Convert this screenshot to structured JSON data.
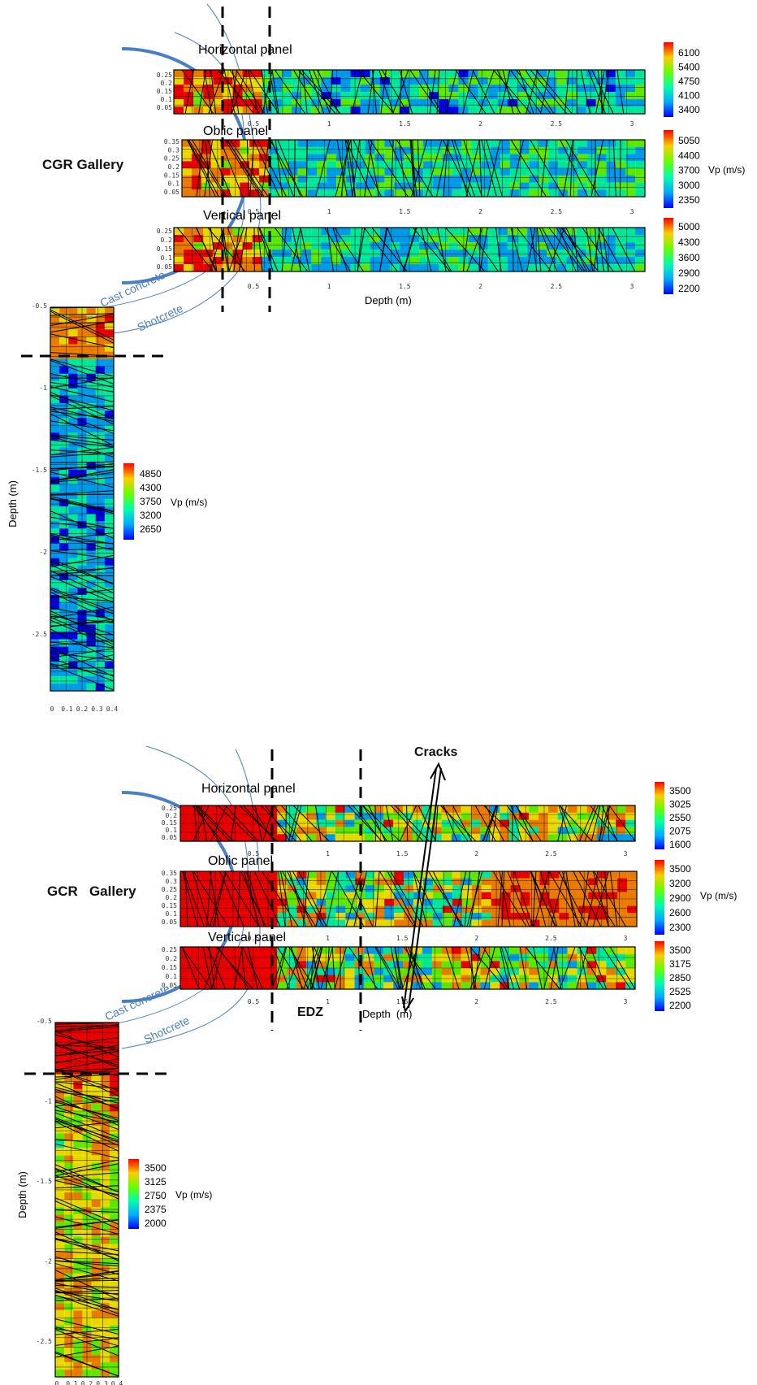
{
  "figure_top": {
    "gallery_label": "CGR Gallery",
    "layer_labels": [
      "Cast concrete",
      "Shotcrete"
    ],
    "depth_label_horizontal": "Depth (m)",
    "depth_label_vertical": "Depth (m)",
    "unit_label": "Vp (m/s)",
    "panels": [
      {
        "title": "Horizontal panel",
        "y_ticks": [
          "0.25",
          "0.2",
          "0.15",
          "0.1",
          "0.05"
        ],
        "x_ticks": [
          "0.5",
          "1",
          "1.5",
          "2",
          "2.5",
          "3"
        ],
        "colorbar": [
          "6100",
          "5400",
          "4750",
          "4100",
          "3400"
        ]
      },
      {
        "title": "Oblic panel",
        "y_ticks": [
          "0.35",
          "0.3",
          "0.25",
          "0.2",
          "0.15",
          "0.1",
          "0.05"
        ],
        "x_ticks": [
          "0.5",
          "1",
          "1.5",
          "2",
          "2.5",
          "3"
        ],
        "colorbar": [
          "5050",
          "4400",
          "3700",
          "3000",
          "2350"
        ]
      },
      {
        "title": "Vertical panel",
        "y_ticks": [
          "0.25",
          "0.2",
          "0.15",
          "0.1",
          "0.05"
        ],
        "x_ticks": [
          "0.5",
          "1",
          "1.5",
          "2",
          "2.5",
          "3"
        ],
        "colorbar": [
          "5000",
          "4300",
          "3600",
          "2900",
          "2200"
        ]
      }
    ],
    "vertical_panel": {
      "y_ticks": [
        "-0.5",
        "-1",
        "-1.5",
        "-2",
        "-2.5"
      ],
      "x_ticks": [
        "0",
        "0.1",
        "0.2",
        "0.3",
        "0.4"
      ],
      "colorbar": [
        "4850",
        "4300",
        "3750",
        "3200",
        "2650"
      ]
    }
  },
  "figure_bottom": {
    "gallery_label": "GCR   Gallery",
    "layer_labels": [
      "Cast concrete",
      "Shotcrete"
    ],
    "cracks_label": "Cracks",
    "edz_label": "EDZ",
    "depth_label_horizontal": "Depth  (m)",
    "depth_label_vertical": "Depth (m)",
    "unit_label": "Vp (m/s)",
    "panels": [
      {
        "title": "Horizontal panel",
        "y_ticks": [
          "0.25",
          "0.2",
          "0.15",
          "0.1",
          "0.05"
        ],
        "x_ticks": [
          "0.5",
          "1",
          "1.5",
          "2",
          "2.5",
          "3"
        ],
        "colorbar": [
          "3500",
          "3025",
          "2550",
          "2075",
          "1600"
        ]
      },
      {
        "title": "Oblic panel",
        "y_ticks": [
          "0.35",
          "0.3",
          "0.25",
          "0.2",
          "0.15",
          "0.1",
          "0.05"
        ],
        "x_ticks": [
          "0.5",
          "1",
          "1.5",
          "2",
          "2.5",
          "3"
        ],
        "colorbar": [
          "3500",
          "3200",
          "2900",
          "2600",
          "2300"
        ]
      },
      {
        "title": "Vertical panel",
        "y_ticks": [
          "0.25",
          "0.2",
          "0.15",
          "0.1",
          "0.05"
        ],
        "x_ticks": [
          "0.5",
          "1",
          "1.5",
          "2",
          "2.5",
          "3"
        ],
        "colorbar": [
          "3500",
          "3175",
          "2850",
          "2525",
          "2200"
        ]
      }
    ],
    "vertical_panel": {
      "y_ticks": [
        "-0.5",
        "-1",
        "-1.5",
        "-2",
        "-2.5"
      ],
      "x_ticks": [
        "0",
        "0.1",
        "0.2",
        "0.3",
        "0.4"
      ],
      "colorbar": [
        "3500",
        "3125",
        "2750",
        "2375",
        "2000"
      ]
    }
  },
  "colors": {
    "accent_blue": "#4a7fc1",
    "colormap": [
      "#0000ff",
      "#00aaff",
      "#00ffaa",
      "#66ff00",
      "#ffee00",
      "#ff8800",
      "#ff0000"
    ]
  }
}
